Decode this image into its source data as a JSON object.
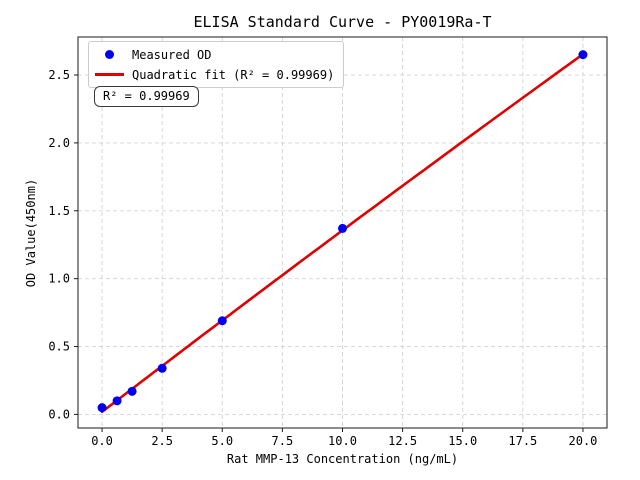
{
  "chart_data": {
    "type": "scatter",
    "title": "ELISA Standard Curve - PY0019Ra-T",
    "xlabel": "Rat MMP-13 Concentration (ng/mL)",
    "ylabel": "OD Value(450nm)",
    "xlim": [
      -1,
      21
    ],
    "ylim": [
      -0.1,
      2.78
    ],
    "xticks": [
      0,
      2.5,
      5,
      7.5,
      10,
      12.5,
      15,
      17.5,
      20
    ],
    "xtick_labels": [
      "0.0",
      "2.5",
      "5.0",
      "7.5",
      "10.0",
      "12.5",
      "15.0",
      "17.5",
      "20.0"
    ],
    "yticks": [
      0,
      0.5,
      1,
      1.5,
      2,
      2.5
    ],
    "ytick_labels": [
      "0.0",
      "0.5",
      "1.0",
      "1.5",
      "2.0",
      "2.5"
    ],
    "grid": true,
    "legend_position": "upper left",
    "annotation": "R² = 0.99969",
    "r_squared": 0.99969,
    "series": [
      {
        "name": "Measured OD",
        "type": "scatter",
        "color": "#0000f0",
        "x": [
          0,
          0.625,
          1.25,
          2.5,
          5,
          10,
          20
        ],
        "y": [
          0.05,
          0.1,
          0.17,
          0.34,
          0.69,
          1.37,
          2.65
        ]
      },
      {
        "name": "Quadratic fit (R² = 0.99969)",
        "type": "line",
        "fit": "quadratic",
        "color": "#e00000",
        "x_range": [
          0,
          20
        ]
      }
    ]
  },
  "colors": {
    "marker": "#0000f0",
    "fit_line": "#e00000",
    "grid": "#d2d2d2",
    "spine": "#1a1a1a",
    "tick_label": "#000000",
    "legend_border": "#cccccc",
    "background": "#ffffff"
  }
}
